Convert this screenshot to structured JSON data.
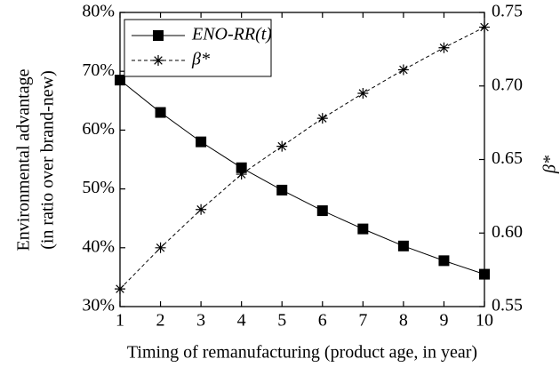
{
  "chart_data": {
    "type": "line",
    "xlabel": "Timing of remanufacturing (product age, in year)",
    "ylabel": [
      "Environmental advantage",
      "(in ratio over brand-new)"
    ],
    "y2label": "β*",
    "x": [
      1,
      2,
      3,
      4,
      5,
      6,
      7,
      8,
      9,
      10
    ],
    "xlim": [
      1,
      10
    ],
    "xticks": [
      1,
      2,
      3,
      4,
      5,
      6,
      7,
      8,
      9,
      10
    ],
    "ylim": [
      30,
      80
    ],
    "yticks": [
      {
        "value": 30,
        "label": "30%"
      },
      {
        "value": 40,
        "label": "40%"
      },
      {
        "value": 50,
        "label": "50%"
      },
      {
        "value": 60,
        "label": "60%"
      },
      {
        "value": 70,
        "label": "70%"
      },
      {
        "value": 80,
        "label": "80%"
      }
    ],
    "y2lim": [
      0.55,
      0.75
    ],
    "y2ticks": [
      0.55,
      {
        "value": 0.6,
        "label": "0.60"
      },
      0.65,
      {
        "value": 0.7,
        "label": "0.70"
      },
      0.75
    ],
    "legend": "upper left",
    "series": [
      {
        "name": "ENO-RR(t)",
        "color": "#000000",
        "marker": "square",
        "dash": "solid",
        "values": [
          68.5,
          63,
          58,
          53.6,
          49.8,
          46.3,
          43.2,
          40.3,
          37.8,
          35.5
        ]
      },
      {
        "name": "β*",
        "color": "#000000",
        "marker": "star",
        "dash": "dashed",
        "axis": "y2",
        "values": [
          0.562,
          0.59,
          0.616,
          0.64,
          0.659,
          0.678,
          0.695,
          0.711,
          0.726,
          0.74
        ]
      }
    ]
  }
}
